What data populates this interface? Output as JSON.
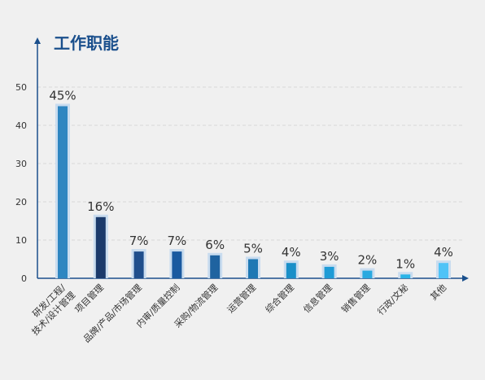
{
  "chart_data": {
    "type": "bar",
    "title": "工作职能",
    "categories": [
      [
        "研发/工程/",
        "技术/设计管理"
      ],
      [
        "项目管理"
      ],
      [
        "品牌/产品/市场管理"
      ],
      [
        "内审/质量控制"
      ],
      [
        "采购/物流管理"
      ],
      [
        "运营管理"
      ],
      [
        "综合管理"
      ],
      [
        "信息管理"
      ],
      [
        "销售管理"
      ],
      [
        "行政/文秘"
      ],
      [
        "其他"
      ]
    ],
    "values": [
      45,
      16,
      7,
      7,
      6,
      5,
      4,
      3,
      2,
      1,
      4
    ],
    "data_labels": [
      "45%",
      "16%",
      "7%",
      "7%",
      "6%",
      "5%",
      "4%",
      "3%",
      "2%",
      "1%",
      "4%"
    ],
    "bar_colors": [
      "#2e86c1",
      "#1b3a6b",
      "#1f4e8c",
      "#1a5aa0",
      "#1f63a0",
      "#1e78b4",
      "#1a8fc8",
      "#1e9bd6",
      "#29a9e0",
      "#2ab4e8",
      "#4fc3f7"
    ],
    "shadow_color": "#c9dcef",
    "axis_color": "#1a4f8c",
    "grid_color": "#d8d8d8",
    "ylim": [
      0,
      50
    ],
    "yticks": [
      0,
      10,
      20,
      30,
      40,
      50
    ],
    "grid": true,
    "xlabel": "",
    "ylabel": ""
  }
}
